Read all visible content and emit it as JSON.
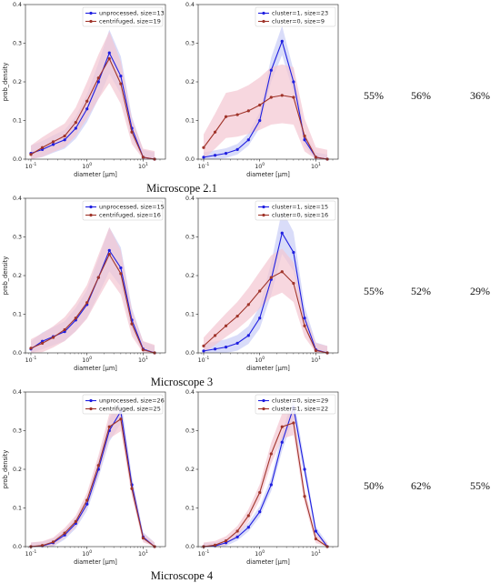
{
  "colors": {
    "blue": "#1f1fe0",
    "red": "#a0342a",
    "blue_band": "#c9cdf6",
    "red_band": "#f4c6d2"
  },
  "rows": [
    {
      "caption": "Microscope 2.1",
      "percentages": [
        "55%",
        "56%",
        "36%"
      ]
    },
    {
      "caption": "Microscope 3",
      "percentages": [
        "55%",
        "52%",
        "29%"
      ]
    },
    {
      "caption": "Microscope 4",
      "percentages": [
        "50%",
        "62%",
        "55%"
      ]
    }
  ],
  "chart_data": [
    {
      "type": "line",
      "xscale": "log",
      "xlim": [
        0.08,
        25
      ],
      "ylim": [
        0,
        0.4
      ],
      "xlabel": "diameter [µm]",
      "ylabel": "prob_density",
      "xticks": [
        "10^-1",
        "10^0",
        "10^1"
      ],
      "yticks": [
        "0.0",
        "0.1",
        "0.2",
        "0.3",
        "0.4"
      ],
      "x": [
        0.1,
        0.16,
        0.25,
        0.4,
        0.63,
        1.0,
        1.6,
        2.5,
        4.0,
        6.3,
        10,
        16
      ],
      "series": [
        {
          "name": "unprocessed, size=13",
          "color": "blue",
          "y": [
            0.015,
            0.025,
            0.038,
            0.05,
            0.08,
            0.13,
            0.2,
            0.275,
            0.215,
            0.08,
            0.005,
            0.0
          ],
          "band": 0.06
        },
        {
          "name": "centrifuged, size=19",
          "color": "red",
          "y": [
            0.012,
            0.03,
            0.045,
            0.06,
            0.095,
            0.15,
            0.21,
            0.26,
            0.195,
            0.07,
            0.005,
            0.0
          ],
          "band": 0.07
        }
      ]
    },
    {
      "type": "line",
      "xscale": "log",
      "xlim": [
        0.08,
        25
      ],
      "ylim": [
        0,
        0.4
      ],
      "xlabel": "diameter [µm]",
      "ylabel": "",
      "xticks": [
        "10^-1",
        "10^0",
        "10^1"
      ],
      "yticks": [
        "0.0",
        "0.1",
        "0.2",
        "0.3",
        "0.4"
      ],
      "x": [
        0.1,
        0.16,
        0.25,
        0.4,
        0.63,
        1.0,
        1.6,
        2.5,
        4.0,
        6.3,
        10,
        16
      ],
      "series": [
        {
          "name": "cluster=1, size=23",
          "color": "blue",
          "y": [
            0.005,
            0.01,
            0.015,
            0.025,
            0.05,
            0.1,
            0.23,
            0.305,
            0.2,
            0.05,
            0.005,
            0.0
          ],
          "band": 0.04
        },
        {
          "name": "cluster=0, size=9",
          "color": "red",
          "y": [
            0.03,
            0.07,
            0.11,
            0.115,
            0.125,
            0.14,
            0.16,
            0.165,
            0.16,
            0.06,
            0.005,
            0.0
          ],
          "band": 0.08
        }
      ]
    },
    {
      "type": "line",
      "xscale": "log",
      "xlim": [
        0.08,
        25
      ],
      "ylim": [
        0,
        0.4
      ],
      "xlabel": "diameter [µm]",
      "ylabel": "prob_density",
      "xticks": [
        "10^-1",
        "10^0",
        "10^1"
      ],
      "yticks": [
        "0.0",
        "0.1",
        "0.2",
        "0.3",
        "0.4"
      ],
      "x": [
        0.1,
        0.16,
        0.25,
        0.4,
        0.63,
        1.0,
        1.6,
        2.5,
        4.0,
        6.3,
        10,
        16
      ],
      "series": [
        {
          "name": "unprocessed, size=15",
          "color": "blue",
          "y": [
            0.01,
            0.03,
            0.042,
            0.055,
            0.085,
            0.125,
            0.195,
            0.265,
            0.22,
            0.085,
            0.01,
            0.0
          ],
          "band": 0.06
        },
        {
          "name": "centrifuged, size=16",
          "color": "red",
          "y": [
            0.012,
            0.025,
            0.04,
            0.06,
            0.09,
            0.13,
            0.195,
            0.255,
            0.205,
            0.075,
            0.008,
            0.0
          ],
          "band": 0.07
        }
      ]
    },
    {
      "type": "line",
      "xscale": "log",
      "xlim": [
        0.08,
        25
      ],
      "ylim": [
        0,
        0.4
      ],
      "xlabel": "diameter [µm]",
      "ylabel": "",
      "xticks": [
        "10^-1",
        "10^0",
        "10^1"
      ],
      "yticks": [
        "0.0",
        "0.1",
        "0.2",
        "0.3",
        "0.4"
      ],
      "x": [
        0.1,
        0.16,
        0.25,
        0.4,
        0.63,
        1.0,
        1.6,
        2.5,
        4.0,
        6.3,
        10,
        16
      ],
      "series": [
        {
          "name": "cluster=1, size=15",
          "color": "blue",
          "y": [
            0.005,
            0.01,
            0.015,
            0.025,
            0.045,
            0.09,
            0.19,
            0.31,
            0.26,
            0.09,
            0.008,
            0.0
          ],
          "band": 0.06
        },
        {
          "name": "cluster=0, size=16",
          "color": "red",
          "y": [
            0.018,
            0.045,
            0.07,
            0.095,
            0.125,
            0.16,
            0.195,
            0.21,
            0.18,
            0.07,
            0.006,
            0.0
          ],
          "band": 0.06
        }
      ]
    },
    {
      "type": "line",
      "xscale": "log",
      "xlim": [
        0.08,
        25
      ],
      "ylim": [
        0,
        0.4
      ],
      "xlabel": "diameter [µm]",
      "ylabel": "prob_density",
      "xticks": [
        "10^-1",
        "10^0",
        "10^1"
      ],
      "yticks": [
        "0.0",
        "0.1",
        "0.2",
        "0.3",
        "0.4"
      ],
      "x": [
        0.1,
        0.16,
        0.25,
        0.4,
        0.63,
        1.0,
        1.6,
        2.5,
        4.0,
        6.3,
        10,
        16
      ],
      "series": [
        {
          "name": "unprocessed, size=26",
          "color": "blue",
          "y": [
            0.0,
            0.002,
            0.01,
            0.03,
            0.06,
            0.11,
            0.2,
            0.3,
            0.35,
            0.16,
            0.025,
            0.0
          ],
          "band": 0.035
        },
        {
          "name": "centrifuged, size=25",
          "color": "red",
          "y": [
            0.0,
            0.003,
            0.012,
            0.035,
            0.065,
            0.12,
            0.21,
            0.31,
            0.33,
            0.15,
            0.022,
            0.0
          ],
          "band": 0.035
        }
      ]
    },
    {
      "type": "line",
      "xscale": "log",
      "xlim": [
        0.08,
        25
      ],
      "ylim": [
        0,
        0.4
      ],
      "xlabel": "diameter [µm]",
      "ylabel": "",
      "xticks": [
        "10^-1",
        "10^0",
        "10^1"
      ],
      "yticks": [
        "0.0",
        "0.1",
        "0.2",
        "0.3",
        "0.4"
      ],
      "x": [
        0.1,
        0.16,
        0.25,
        0.4,
        0.63,
        1.0,
        1.6,
        2.5,
        4.0,
        6.3,
        10,
        16
      ],
      "series": [
        {
          "name": "cluster=0, size=29",
          "color": "blue",
          "y": [
            0.0,
            0.002,
            0.01,
            0.025,
            0.05,
            0.09,
            0.16,
            0.27,
            0.36,
            0.2,
            0.04,
            0.0
          ],
          "band": 0.03
        },
        {
          "name": "cluster=1, size=22",
          "color": "red",
          "y": [
            0.0,
            0.004,
            0.015,
            0.04,
            0.08,
            0.14,
            0.24,
            0.31,
            0.32,
            0.13,
            0.02,
            0.0
          ],
          "band": 0.035
        }
      ]
    }
  ]
}
